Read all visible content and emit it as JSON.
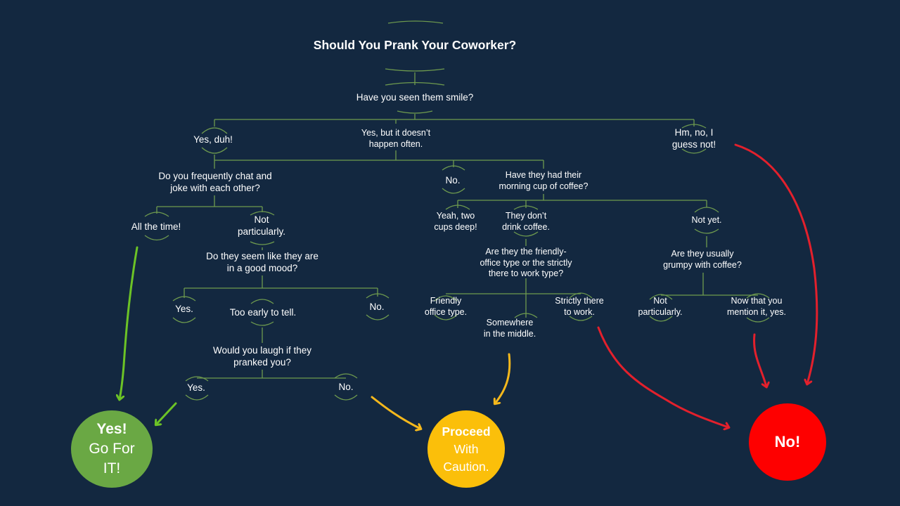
{
  "title": "Should You Prank Your Coworker?",
  "nodes": {
    "q_smile": "Have you seen them smile?",
    "a_yes_duh": "Yes, duh!",
    "a_yes_not_often": "Yes, but it doesn’t\nhappen often.",
    "a_hm_no": "Hm, no, I\nguess not!",
    "q_chat": "Do you frequently chat and\njoke with each other?",
    "a_all_time": "All the time!",
    "a_not_particularly_1": "Not\nparticularly.",
    "q_good_mood": "Do they seem like they are\nin a good mood?",
    "a_yes_mood": "Yes.",
    "a_too_early": "Too early to tell.",
    "a_no_mood": "No.",
    "q_laugh": "Would you laugh if they\npranked you?",
    "a_yes_laugh": "Yes.",
    "a_no_laugh": "No.",
    "a_no_mid": "No.",
    "q_coffee": "Have they had their\nmorning cup of coffee?",
    "a_two_cups": "Yeah, two\ncups deep!",
    "a_dont_drink": "They don’t\ndrink coffee.",
    "a_not_yet": "Not yet.",
    "q_friendly": "Are they the friendly-\noffice type or the strictly\nthere to work type?",
    "a_friendly": "Friendly\noffice type.",
    "a_middle": "Somewhere\nin the middle.",
    "a_strictly": "Strictly there\nto work.",
    "q_grumpy": "Are they usually\ngrumpy with coffee?",
    "a_not_particularly_2": "Not\nparticularly.",
    "a_mention": "Now that you\nmention it, yes."
  },
  "outcomes": {
    "yes": {
      "line1": "Yes!",
      "line2": "Go For",
      "line3": "IT!",
      "color": "#6aa844"
    },
    "caution": {
      "line1": "Proceed",
      "line2": "With",
      "line3": "Caution.",
      "color": "#fbbf0a"
    },
    "no": {
      "line1": "No!",
      "color": "#fe0000"
    }
  },
  "colors": {
    "background": "#132840",
    "connector": "#6e9a4e",
    "arrow_green": "#6cc326",
    "arrow_yellow": "#f5b81c",
    "arrow_red": "#e3202c"
  }
}
